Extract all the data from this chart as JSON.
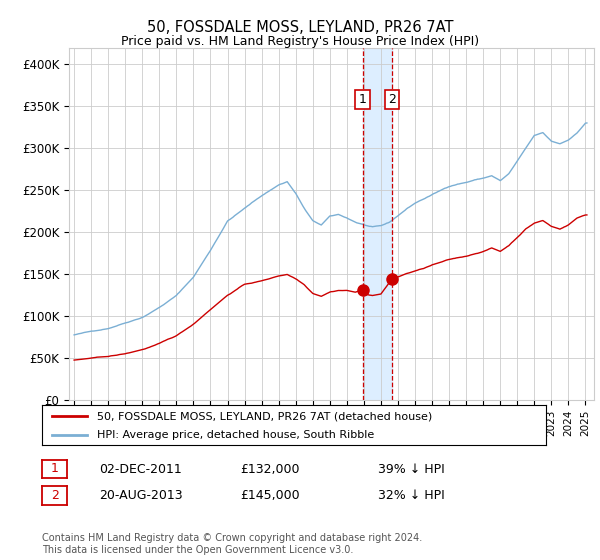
{
  "title": "50, FOSSDALE MOSS, LEYLAND, PR26 7AT",
  "subtitle": "Price paid vs. HM Land Registry's House Price Index (HPI)",
  "legend_line1": "50, FOSSDALE MOSS, LEYLAND, PR26 7AT (detached house)",
  "legend_line2": "HPI: Average price, detached house, South Ribble",
  "transaction1_date": "02-DEC-2011",
  "transaction1_price": "£132,000",
  "transaction1_hpi": "39% ↓ HPI",
  "transaction2_date": "20-AUG-2013",
  "transaction2_price": "£145,000",
  "transaction2_hpi": "32% ↓ HPI",
  "footer": "Contains HM Land Registry data © Crown copyright and database right 2024.\nThis data is licensed under the Open Government Licence v3.0.",
  "hpi_color": "#7BAFD4",
  "price_color": "#cc0000",
  "shading_color": "#ddeeff",
  "grid_color": "#cccccc",
  "background_color": "#ffffff",
  "ylim": [
    0,
    420000
  ],
  "yticks": [
    0,
    50000,
    100000,
    150000,
    200000,
    250000,
    300000,
    350000,
    400000
  ],
  "transaction1_x": 2011.92,
  "transaction2_x": 2013.63,
  "transaction1_y": 132000,
  "transaction2_y": 145000,
  "xlim_left": 1994.7,
  "xlim_right": 2025.5
}
